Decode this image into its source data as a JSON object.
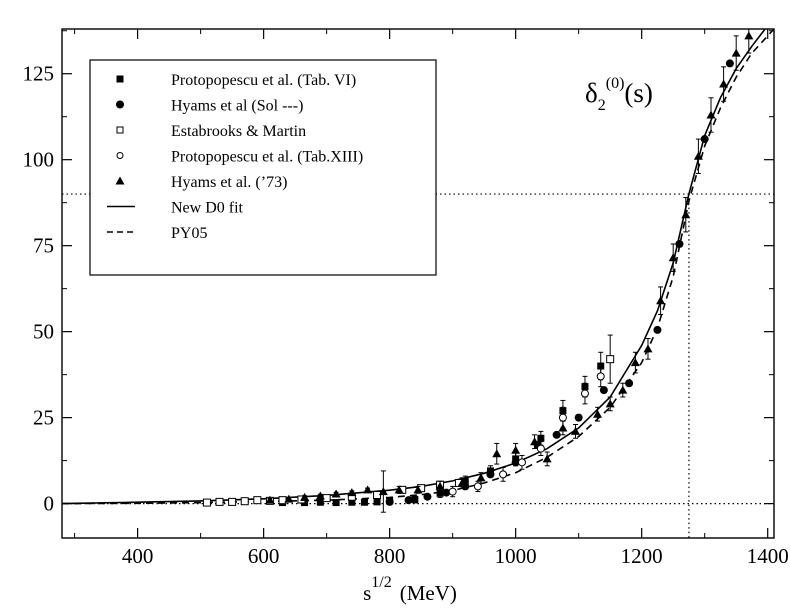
{
  "chart_data": {
    "type": "scatter",
    "annotation": {
      "main": "δ",
      "sub": "2",
      "sup": "(0)",
      "tail": "(s)"
    },
    "xlabel": {
      "base": "s",
      "sup": "1/2",
      "unit": "(MeV)"
    },
    "ylabel": "",
    "xlim": [
      280,
      1410
    ],
    "ylim": [
      -10,
      138
    ],
    "xticks": [
      400,
      600,
      800,
      1000,
      1200,
      1400
    ],
    "yticks": [
      0,
      25,
      50,
      75,
      100,
      125
    ],
    "reference_lines": {
      "horizontal": [
        0,
        90
      ],
      "vertical": [
        1275
      ]
    },
    "legend_position": "top-left",
    "series": [
      {
        "name": "Protopopescu et al. (Tab. VI)",
        "marker": "filled-square",
        "points": [
          {
            "x": 630,
            "y": 0.3,
            "err": 0.6
          },
          {
            "x": 665,
            "y": 0.3,
            "err": 0.6
          },
          {
            "x": 690,
            "y": 0.4,
            "err": 0.6
          },
          {
            "x": 715,
            "y": 0.3,
            "err": 0.6
          },
          {
            "x": 740,
            "y": 0.4,
            "err": 0.6
          },
          {
            "x": 760,
            "y": 0.4,
            "err": 0.6
          },
          {
            "x": 780,
            "y": 0.5,
            "err": 0.6
          },
          {
            "x": 800,
            "y": 0.8,
            "err": 0.8
          },
          {
            "x": 840,
            "y": 1.2,
            "err": 1.0
          },
          {
            "x": 880,
            "y": 3.0,
            "err": 1.2
          },
          {
            "x": 920,
            "y": 6.5,
            "err": 1.5
          },
          {
            "x": 960,
            "y": 9.5,
            "err": 1.5
          },
          {
            "x": 1000,
            "y": 13,
            "err": 2
          },
          {
            "x": 1040,
            "y": 19,
            "err": 2
          },
          {
            "x": 1075,
            "y": 27,
            "err": 3
          },
          {
            "x": 1110,
            "y": 34,
            "err": 3
          },
          {
            "x": 1135,
            "y": 40,
            "err": 4
          }
        ]
      },
      {
        "name": "Hyams et al (Sol ---)",
        "marker": "filled-circle",
        "points": [
          {
            "x": 800,
            "y": 0.5,
            "err": 0
          },
          {
            "x": 830,
            "y": 1.0,
            "err": 0
          },
          {
            "x": 860,
            "y": 2.0,
            "err": 0
          },
          {
            "x": 890,
            "y": 3.2,
            "err": 0
          },
          {
            "x": 920,
            "y": 5.0,
            "err": 0
          },
          {
            "x": 960,
            "y": 8.5,
            "err": 0
          },
          {
            "x": 1000,
            "y": 12,
            "err": 0
          },
          {
            "x": 1035,
            "y": 17,
            "err": 0
          },
          {
            "x": 1065,
            "y": 20,
            "err": 0
          },
          {
            "x": 1100,
            "y": 25,
            "err": 0
          },
          {
            "x": 1140,
            "y": 33,
            "err": 0
          },
          {
            "x": 1180,
            "y": 35,
            "err": 0
          },
          {
            "x": 1225,
            "y": 50.5,
            "err": 0
          },
          {
            "x": 1260,
            "y": 75.5,
            "err": 0
          },
          {
            "x": 1300,
            "y": 106,
            "err": 0
          },
          {
            "x": 1340,
            "y": 128,
            "err": 0
          }
        ]
      },
      {
        "name": "Estabrooks & Martin",
        "marker": "open-square",
        "points": [
          {
            "x": 510,
            "y": 0.3,
            "err": 0
          },
          {
            "x": 530,
            "y": 0.5,
            "err": 0
          },
          {
            "x": 550,
            "y": 0.5,
            "err": 0
          },
          {
            "x": 570,
            "y": 0.7,
            "err": 0
          },
          {
            "x": 590,
            "y": 1.0,
            "err": 0
          },
          {
            "x": 610,
            "y": 0.8,
            "err": 0
          },
          {
            "x": 630,
            "y": 1.0,
            "err": 0
          },
          {
            "x": 660,
            "y": 1.2,
            "err": 0
          },
          {
            "x": 700,
            "y": 1.6,
            "err": 0
          },
          {
            "x": 740,
            "y": 2.0,
            "err": 0
          },
          {
            "x": 780,
            "y": 2.5,
            "err": 0
          },
          {
            "x": 820,
            "y": 4.0,
            "err": 0
          },
          {
            "x": 850,
            "y": 4.5,
            "err": 0
          },
          {
            "x": 880,
            "y": 5.5,
            "err": 0
          },
          {
            "x": 910,
            "y": 6.0,
            "err": 0
          },
          {
            "x": 1150,
            "y": 42,
            "err": 7
          }
        ]
      },
      {
        "name": "Protopopescu et al. (Tab.XIII)",
        "marker": "open-circle",
        "points": [
          {
            "x": 900,
            "y": 3.5,
            "err": 1.5
          },
          {
            "x": 940,
            "y": 5.0,
            "err": 1.5
          },
          {
            "x": 980,
            "y": 8.5,
            "err": 2
          },
          {
            "x": 1010,
            "y": 12,
            "err": 2
          },
          {
            "x": 1040,
            "y": 16,
            "err": 2
          },
          {
            "x": 1075,
            "y": 25,
            "err": 3
          },
          {
            "x": 1110,
            "y": 32,
            "err": 3
          },
          {
            "x": 1135,
            "y": 37,
            "err": 3
          }
        ]
      },
      {
        "name": "Hyams et al. (’73)",
        "marker": "filled-triangle",
        "points": [
          {
            "x": 610,
            "y": 1.0,
            "err": 0.5
          },
          {
            "x": 640,
            "y": 1.3,
            "err": 0.5
          },
          {
            "x": 665,
            "y": 1.8,
            "err": 0.5
          },
          {
            "x": 690,
            "y": 2.2,
            "err": 0.5
          },
          {
            "x": 715,
            "y": 2.8,
            "err": 0.5
          },
          {
            "x": 740,
            "y": 3.2,
            "err": 0.5
          },
          {
            "x": 765,
            "y": 4.0,
            "err": 0.5
          },
          {
            "x": 790,
            "y": 3.5,
            "err": 6
          },
          {
            "x": 815,
            "y": 4.0,
            "err": 1
          },
          {
            "x": 845,
            "y": 4.0,
            "err": 1
          },
          {
            "x": 880,
            "y": 5.0,
            "err": 1.5
          },
          {
            "x": 915,
            "y": 6.0,
            "err": 1.5
          },
          {
            "x": 945,
            "y": 7.5,
            "err": 1.5
          },
          {
            "x": 970,
            "y": 14.5,
            "err": 3
          },
          {
            "x": 1000,
            "y": 15.5,
            "err": 2
          },
          {
            "x": 1030,
            "y": 18,
            "err": 2
          },
          {
            "x": 1050,
            "y": 13,
            "err": 2
          },
          {
            "x": 1075,
            "y": 22,
            "err": 2
          },
          {
            "x": 1095,
            "y": 21,
            "err": 2
          },
          {
            "x": 1130,
            "y": 26,
            "err": 2
          },
          {
            "x": 1150,
            "y": 29,
            "err": 2
          },
          {
            "x": 1170,
            "y": 33,
            "err": 2
          },
          {
            "x": 1190,
            "y": 41,
            "err": 3
          },
          {
            "x": 1210,
            "y": 45,
            "err": 3
          },
          {
            "x": 1230,
            "y": 59,
            "err": 4
          },
          {
            "x": 1250,
            "y": 71.5,
            "err": 4
          },
          {
            "x": 1270,
            "y": 84,
            "err": 5
          },
          {
            "x": 1290,
            "y": 101,
            "err": 5
          },
          {
            "x": 1310,
            "y": 113,
            "err": 5
          },
          {
            "x": 1330,
            "y": 122,
            "err": 5
          },
          {
            "x": 1350,
            "y": 131,
            "err": 5
          },
          {
            "x": 1370,
            "y": 136,
            "err": 5
          }
        ]
      },
      {
        "name": "New D0 fit",
        "line": "solid",
        "x": [
          280,
          400,
          500,
          600,
          700,
          800,
          850,
          900,
          950,
          1000,
          1050,
          1100,
          1150,
          1200,
          1225,
          1250,
          1275,
          1300,
          1325,
          1350,
          1375,
          1400,
          1410
        ],
        "y": [
          0,
          0.4,
          0.8,
          1.4,
          2.4,
          3.9,
          5.0,
          6.6,
          8.8,
          11.8,
          16.0,
          22.0,
          31.0,
          46.0,
          56.0,
          70.0,
          90.0,
          107.0,
          118.0,
          126.5,
          133.0,
          139.0,
          141.0
        ]
      },
      {
        "name": "PY05",
        "line": "dashed",
        "x": [
          280,
          400,
          500,
          600,
          700,
          800,
          850,
          900,
          950,
          1000,
          1050,
          1100,
          1150,
          1200,
          1225,
          1250,
          1275,
          1300,
          1325,
          1350,
          1375,
          1400,
          1410
        ],
        "y": [
          0,
          0.1,
          0.3,
          0.6,
          1.0,
          1.8,
          2.6,
          3.8,
          6.0,
          9.0,
          13.5,
          19.5,
          28.0,
          41.0,
          51.0,
          66.0,
          88.0,
          104.0,
          115.0,
          124.0,
          131.0,
          136.0,
          138.0
        ]
      }
    ]
  }
}
